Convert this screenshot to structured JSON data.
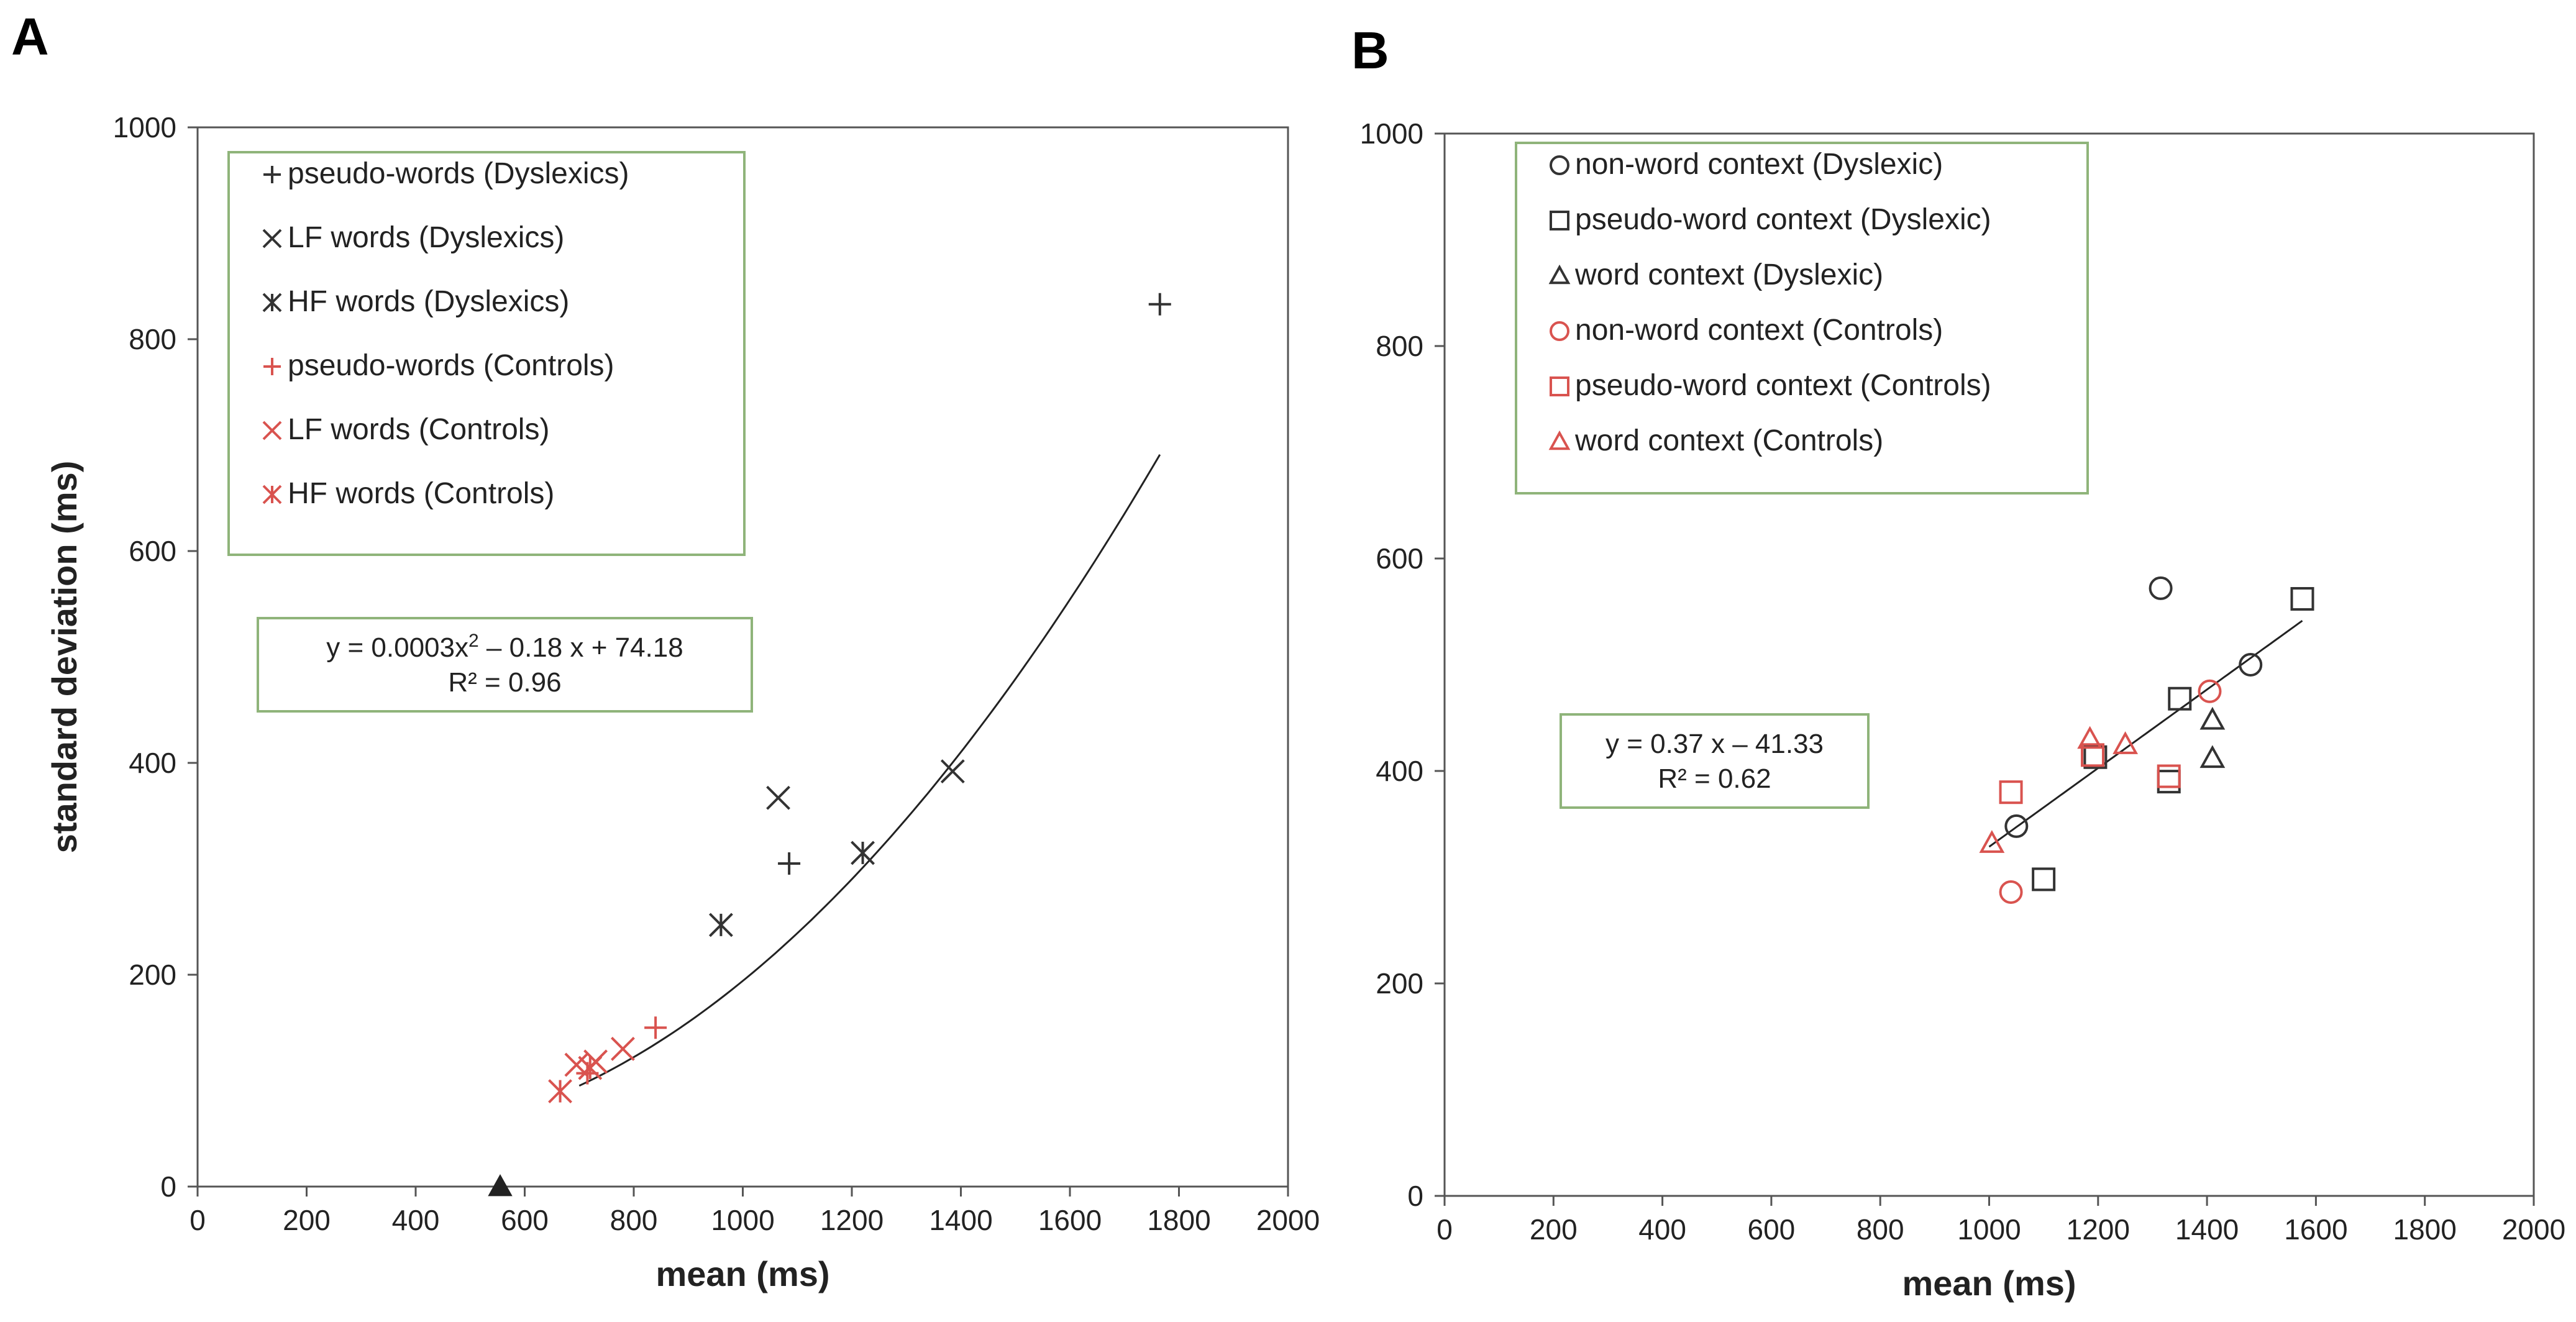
{
  "figure": {
    "panels": [
      {
        "letter": "A"
      },
      {
        "letter": "B"
      }
    ]
  },
  "chart_data": [
    {
      "type": "scatter",
      "title": "",
      "xlabel": "mean (ms)",
      "ylabel": "standard deviation (ms)",
      "xlim": [
        0,
        2000
      ],
      "ylim": [
        0,
        1000
      ],
      "xticks": [
        0,
        200,
        400,
        600,
        800,
        1000,
        1200,
        1400,
        1600,
        1800,
        2000
      ],
      "yticks": [
        0,
        200,
        400,
        600,
        800,
        1000
      ],
      "grid": false,
      "legend_position": "top-left",
      "series": [
        {
          "name": "pseudo-words (Dyslexics)",
          "marker": "plus",
          "color": "#333333",
          "points": [
            [
              1765,
              833
            ],
            [
              1085,
              305
            ]
          ]
        },
        {
          "name": "LF words (Dyslexics)",
          "marker": "x",
          "color": "#333333",
          "points": [
            [
              1065,
              367
            ],
            [
              1385,
              392
            ]
          ]
        },
        {
          "name": "HF words (Dyslexics)",
          "marker": "asterisk",
          "color": "#333333",
          "points": [
            [
              960,
              247
            ],
            [
              1220,
              315
            ]
          ]
        },
        {
          "name": "pseudo-words (Controls)",
          "marker": "plus",
          "color": "#d9534f",
          "points": [
            [
              840,
              150
            ],
            [
              715,
              107
            ]
          ]
        },
        {
          "name": "LF words (Controls)",
          "marker": "x",
          "color": "#d9534f",
          "points": [
            [
              780,
              130
            ],
            [
              695,
              115
            ],
            [
              730,
              118
            ]
          ]
        },
        {
          "name": "HF words (Controls)",
          "marker": "asterisk",
          "color": "#d9534f",
          "points": [
            [
              665,
              90
            ],
            [
              720,
              112
            ]
          ]
        }
      ],
      "extra_marker": {
        "shape": "filled-triangle",
        "color": "#222222",
        "point": [
          555,
          0
        ]
      },
      "trendline": {
        "kind": "quadratic",
        "a": 0.0003,
        "b": -0.18,
        "c": 74.18,
        "x_range": [
          700,
          1765
        ]
      },
      "equation": {
        "line1_prefix": "y = 0.0003x",
        "line1_sup": "2",
        "line1_suffix": " – 0.18 x + 74.18",
        "line2": "R² = 0.96"
      }
    },
    {
      "type": "scatter",
      "title": "",
      "xlabel": "mean (ms)",
      "ylabel": "",
      "xlim": [
        0,
        2000
      ],
      "ylim": [
        0,
        1000
      ],
      "xticks": [
        0,
        200,
        400,
        600,
        800,
        1000,
        1200,
        1400,
        1600,
        1800,
        2000
      ],
      "yticks": [
        0,
        200,
        400,
        600,
        800,
        1000
      ],
      "grid": false,
      "legend_position": "top-left",
      "series": [
        {
          "name": "non-word context (Dyslexic)",
          "marker": "circle",
          "color": "#333333",
          "points": [
            [
              1315,
              572
            ],
            [
              1480,
              500
            ],
            [
              1050,
              348
            ]
          ]
        },
        {
          "name": "pseudo-word context (Dyslexic)",
          "marker": "square",
          "color": "#333333",
          "points": [
            [
              1575,
              562
            ],
            [
              1350,
              468
            ],
            [
              1330,
              390
            ],
            [
              1195,
              413
            ],
            [
              1100,
              298
            ]
          ]
        },
        {
          "name": "word context (Dyslexic)",
          "marker": "triangle",
          "color": "#333333",
          "points": [
            [
              1410,
              448
            ],
            [
              1410,
              412
            ]
          ]
        },
        {
          "name": "non-word context (Controls)",
          "marker": "circle",
          "color": "#d9534f",
          "points": [
            [
              1405,
              475
            ],
            [
              1040,
              286
            ]
          ]
        },
        {
          "name": "pseudo-word context (Controls)",
          "marker": "square",
          "color": "#d9534f",
          "points": [
            [
              1040,
              380
            ],
            [
              1190,
              415
            ],
            [
              1330,
              395
            ]
          ]
        },
        {
          "name": "word context (Controls)",
          "marker": "triangle",
          "color": "#d9534f",
          "points": [
            [
              1185,
              430
            ],
            [
              1250,
              425
            ],
            [
              1005,
              332
            ]
          ]
        }
      ],
      "trendline": {
        "kind": "linear",
        "a": 0,
        "b": 0.37,
        "c": -41.33,
        "x_range": [
          1000,
          1575
        ]
      },
      "equation": {
        "line1_prefix": "y = 0.37 x – 41.33",
        "line1_sup": "",
        "line1_suffix": "",
        "line2": "R² = 0.62"
      }
    }
  ]
}
